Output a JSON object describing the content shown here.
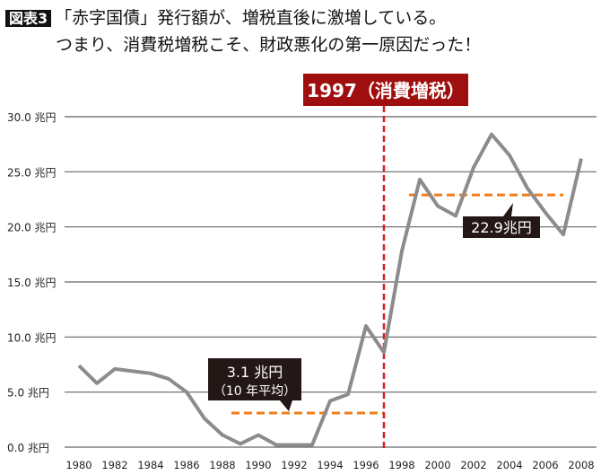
{
  "header": {
    "tag": "図表3",
    "line1": "「赤字国債」発行額が、増税直後に激増している。",
    "line2": "つまり、消費税増税こそ、財政悪化の第一原因だった！"
  },
  "chart_data": {
    "type": "line",
    "x": [
      1980,
      1981,
      1982,
      1983,
      1984,
      1985,
      1986,
      1987,
      1988,
      1989,
      1990,
      1991,
      1992,
      1993,
      1994,
      1995,
      1996,
      1997,
      1998,
      1999,
      2000,
      2001,
      2002,
      2003,
      2004,
      2005,
      2006,
      2007,
      2008
    ],
    "values": [
      7.4,
      5.8,
      7.1,
      6.9,
      6.7,
      6.2,
      5.0,
      2.6,
      1.1,
      0.3,
      1.1,
      0.2,
      0.2,
      0.2,
      4.2,
      4.8,
      11.0,
      8.6,
      17.8,
      24.3,
      21.9,
      21.0,
      25.4,
      28.4,
      26.5,
      23.5,
      21.3,
      19.3,
      26.2
    ],
    "ylim": [
      0,
      30
    ],
    "yticks": [
      "0.0 兆円",
      "5.0 兆円",
      "10.0 兆円",
      "15.0 兆円",
      "20.0 兆円",
      "25.0 兆円",
      "30.0 兆円"
    ],
    "xticks": [
      "1980",
      "1982",
      "1984",
      "1986",
      "1988",
      "1990",
      "1992",
      "1994",
      "1996",
      "1998",
      "2000",
      "2002",
      "2004",
      "2006",
      "2008"
    ],
    "grid": true,
    "colors": {
      "line": "#8c8c8c",
      "average": "#f07d1a",
      "marker": "#d42020",
      "marker_box": "#a00f0f",
      "callout": "#231815"
    },
    "marker": {
      "year": 1997,
      "label": "1997（消費増税）"
    },
    "averages": [
      {
        "from": 1988.5,
        "to": 1997,
        "value": 3.1,
        "label1": "3.1 兆円",
        "label2": "（10 年平均）"
      },
      {
        "from": 1998.4,
        "to": 2007,
        "value": 22.9,
        "label1": "22.9兆円"
      }
    ]
  }
}
